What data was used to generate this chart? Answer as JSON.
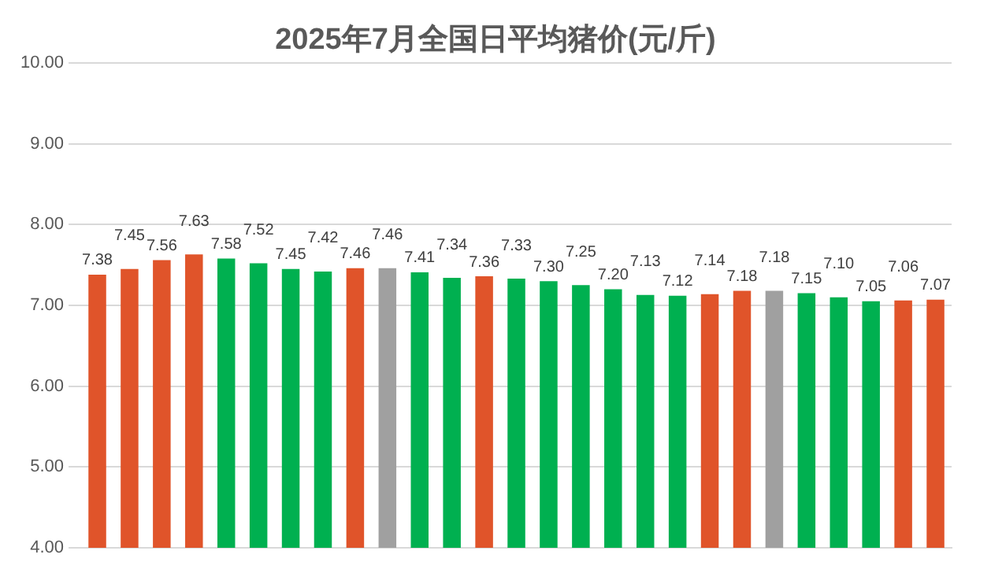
{
  "chart_data": {
    "type": "bar",
    "title": "2025年7月全国日平均猪价(元/斤)",
    "categories": [
      null,
      null,
      null,
      null,
      null,
      null,
      null,
      null,
      null,
      null,
      null,
      null,
      null,
      null,
      null,
      null,
      null,
      null,
      null,
      null,
      null,
      null,
      null,
      null,
      null,
      null,
      null
    ],
    "values": [
      7.38,
      7.45,
      7.56,
      7.63,
      7.58,
      7.52,
      7.45,
      7.42,
      7.46,
      7.46,
      7.41,
      7.34,
      7.36,
      7.33,
      7.3,
      7.25,
      7.2,
      7.13,
      7.12,
      7.14,
      7.18,
      7.18,
      7.15,
      7.1,
      7.05,
      7.06,
      7.07
    ],
    "colors": [
      "#e0542a",
      "#e0542a",
      "#e0542a",
      "#e0542a",
      "#00b050",
      "#00b050",
      "#00b050",
      "#00b050",
      "#e0542a",
      "#a0a0a0",
      "#00b050",
      "#00b050",
      "#e0542a",
      "#00b050",
      "#00b050",
      "#00b050",
      "#00b050",
      "#00b050",
      "#00b050",
      "#e0542a",
      "#e0542a",
      "#a0a0a0",
      "#00b050",
      "#00b050",
      "#00b050",
      "#e0542a",
      "#e0542a"
    ],
    "ylim": [
      4,
      10
    ],
    "yticks": [
      {
        "value": 4,
        "label": "4.00"
      },
      {
        "value": 5,
        "label": "5.00"
      },
      {
        "value": 6,
        "label": "6.00"
      },
      {
        "value": 7,
        "label": "7.00"
      },
      {
        "value": 8,
        "label": "8.00"
      },
      {
        "value": 9,
        "label": "9.00"
      },
      {
        "value": 10,
        "label": "10.00"
      }
    ],
    "value_labels": [
      "7.38",
      "7.45",
      "7.56",
      "7.63",
      "7.58",
      "7.52",
      "7.45",
      "7.42",
      "7.46",
      "7.46",
      "7.41",
      "7.34",
      "7.36",
      "7.33",
      "7.30",
      "7.25",
      "7.20",
      "7.13",
      "7.12",
      "7.14",
      "7.18",
      "7.18",
      "7.15",
      "7.10",
      "7.05",
      "7.06",
      "7.07"
    ],
    "grid": "y",
    "legend": false
  }
}
